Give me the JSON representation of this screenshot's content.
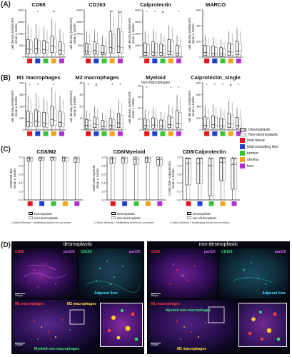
{
  "panelA": {
    "letter": "(A)",
    "charts": [
      {
        "title": "CD68",
        "ylabel": "cell density (cells/mm²)\nmean ± 1stdev",
        "yticks": [
          "0",
          "500",
          "1000",
          "1500",
          "2000"
        ],
        "ymax": 2000,
        "series": [
          {
            "name": "total tissue",
            "median": 350,
            "q1": 150,
            "q3": 750
          },
          {
            "name": "total excluding liver",
            "median": 380,
            "q1": 170,
            "q3": 780
          },
          {
            "name": "tumour",
            "median": 330,
            "q1": 160,
            "q3": 700
          },
          {
            "name": "stroma",
            "median": 480,
            "q1": 200,
            "q3": 900
          },
          {
            "name": "liver",
            "median": 300,
            "q1": 120,
            "q3": 650
          }
        ],
        "sig": [
          {
            "group": 1,
            "label": "*"
          },
          {
            "group": 3,
            "label": "**"
          }
        ]
      },
      {
        "title": "CD163",
        "ylabel": "cell density (cells/mm²)\nmean ± 1stdev",
        "yticks": [
          "0",
          "500",
          "1000",
          "1500",
          "2000"
        ],
        "ymax": 2000,
        "series": [
          {
            "name": "total tissue",
            "median": 250,
            "q1": 120,
            "q3": 600
          },
          {
            "name": "total excluding liver",
            "median": 280,
            "q1": 130,
            "q3": 650
          },
          {
            "name": "tumour",
            "median": 200,
            "q1": 100,
            "q3": 500
          },
          {
            "name": "stroma",
            "median": 420,
            "q1": 180,
            "q3": 1100
          },
          {
            "name": "liver",
            "median": 450,
            "q1": 200,
            "q3": 1200
          }
        ],
        "sig": [
          {
            "group": 3,
            "label": "**"
          },
          {
            "group": 4,
            "label": "#"
          }
        ]
      },
      {
        "title": "Calprotectin",
        "ylabel": "cell density (cells/mm²)\nmean ± 1stdev",
        "yticks": [
          "0",
          "1000",
          "2000",
          "3000",
          "4000"
        ],
        "ymax": 4000,
        "series": [
          {
            "name": "total tissue",
            "median": 400,
            "q1": 150,
            "q3": 1200
          },
          {
            "name": "total excluding liver",
            "median": 420,
            "q1": 160,
            "q3": 1300
          },
          {
            "name": "tumour",
            "median": 380,
            "q1": 140,
            "q3": 1100
          },
          {
            "name": "stroma",
            "median": 500,
            "q1": 200,
            "q3": 1500
          },
          {
            "name": "liver",
            "median": 350,
            "q1": 120,
            "q3": 1000
          }
        ],
        "sig": [
          {
            "group": 0,
            "label": "*"
          },
          {
            "group": 1,
            "label": "*"
          },
          {
            "group": 2,
            "label": "#"
          },
          {
            "group": 4,
            "label": "*"
          }
        ]
      },
      {
        "title": "MARCO",
        "ylabel": "cell density (cells/mm²)\nmean ± 1stdev",
        "yticks": [
          "0",
          "200",
          "400",
          "600"
        ],
        "ymax": 600,
        "series": [
          {
            "name": "total tissue",
            "median": 60,
            "q1": 20,
            "q3": 150
          },
          {
            "name": "total excluding liver",
            "median": 50,
            "q1": 15,
            "q3": 140
          },
          {
            "name": "tumour",
            "median": 40,
            "q1": 10,
            "q3": 120
          },
          {
            "name": "stroma",
            "median": 70,
            "q1": 25,
            "q3": 180
          },
          {
            "name": "liver",
            "median": 80,
            "q1": 30,
            "q3": 200
          }
        ],
        "sig": []
      }
    ]
  },
  "panelB": {
    "letter": "(B)",
    "charts": [
      {
        "title": "M1 macrophages",
        "subtitle": "",
        "ylabel": "cell density (cells/mm²)\nmean ± 1stdev",
        "yticks": [
          "0",
          "100",
          "200",
          "300",
          "400"
        ],
        "ymax": 400,
        "series": [
          {
            "name": "total tissue",
            "median": 70,
            "q1": 30,
            "q3": 160
          },
          {
            "name": "total excluding liver",
            "median": 75,
            "q1": 30,
            "q3": 170
          },
          {
            "name": "tumour",
            "median": 60,
            "q1": 25,
            "q3": 150
          },
          {
            "name": "stroma",
            "median": 90,
            "q1": 40,
            "q3": 200
          },
          {
            "name": "liver",
            "median": 65,
            "q1": 30,
            "q3": 160
          }
        ],
        "sig": [
          {
            "group": 0,
            "label": "*"
          },
          {
            "group": 1,
            "label": "*"
          },
          {
            "group": 3,
            "label": "*"
          }
        ]
      },
      {
        "title": "M2 macrophages",
        "subtitle": "",
        "ylabel": "cell density (cells/mm²)\nmean ± 1stdev",
        "yticks": [
          "0",
          "10",
          "20",
          "30",
          "40"
        ],
        "ymax": 40,
        "series": [
          {
            "name": "total tissue",
            "median": 4,
            "q1": 1,
            "q3": 9
          },
          {
            "name": "total excluding liver",
            "median": 5,
            "q1": 2,
            "q3": 11
          },
          {
            "name": "tumour",
            "median": 3,
            "q1": 1,
            "q3": 8
          },
          {
            "name": "stroma",
            "median": 4,
            "q1": 1,
            "q3": 10
          },
          {
            "name": "liver",
            "median": 6,
            "q1": 2,
            "q3": 14
          }
        ],
        "sig": [
          {
            "group": 0,
            "label": "*"
          },
          {
            "group": 1,
            "label": "#"
          },
          {
            "group": 3,
            "label": "*"
          },
          {
            "group": 4,
            "label": "*"
          }
        ]
      },
      {
        "title": "Myeloid",
        "subtitle": "non-macrophages",
        "ylabel": "cell density (cells/mm²)\nmean ± 1stdev",
        "yticks": [
          "0",
          "20",
          "40",
          "60",
          "80"
        ],
        "ymax": 80,
        "series": [
          {
            "name": "total tissue",
            "median": 8,
            "q1": 3,
            "q3": 20
          },
          {
            "name": "total excluding liver",
            "median": 9,
            "q1": 3,
            "q3": 22
          },
          {
            "name": "tumour",
            "median": 7,
            "q1": 2,
            "q3": 18
          },
          {
            "name": "stroma",
            "median": 10,
            "q1": 4,
            "q3": 25
          },
          {
            "name": "liver",
            "median": 12,
            "q1": 4,
            "q3": 35
          }
        ],
        "sig": [
          {
            "group": 0,
            "label": "*"
          },
          {
            "group": 3,
            "label": "*"
          },
          {
            "group": 4,
            "label": "*"
          }
        ]
      },
      {
        "title": "Calprotectin_single",
        "subtitle": "",
        "ylabel": "cell density (cells/mm²)\nmean ± 1stdev",
        "yticks": [
          "0",
          "200",
          "400",
          "600",
          "800"
        ],
        "ymax": 800,
        "series": [
          {
            "name": "total tissue",
            "median": 80,
            "q1": 30,
            "q3": 220
          },
          {
            "name": "total excluding liver",
            "median": 90,
            "q1": 35,
            "q3": 240
          },
          {
            "name": "tumour",
            "median": 70,
            "q1": 25,
            "q3": 200
          },
          {
            "name": "stroma",
            "median": 110,
            "q1": 40,
            "q3": 280
          },
          {
            "name": "liver",
            "median": 75,
            "q1": 30,
            "q3": 210
          }
        ],
        "sig": [
          {
            "group": 0,
            "label": "*"
          },
          {
            "group": 1,
            "label": "*"
          },
          {
            "group": 2,
            "label": "*"
          },
          {
            "group": 3,
            "label": "#"
          },
          {
            "group": 4,
            "label": "*"
          }
        ]
      }
    ]
  },
  "legendRight": {
    "items": [
      {
        "label": "Desmoplastic",
        "color": "#ffffff",
        "border": "#000000"
      },
      {
        "label": "Non-desmoplastic",
        "color": "#ffffff",
        "border": "#999999"
      },
      {
        "label": "total tissue",
        "color": "#e8141c",
        "border": "#e8141c"
      },
      {
        "label": "total excluding liver",
        "color": "#1f3ec9",
        "border": "#1f3ec9"
      },
      {
        "label": "tumour",
        "color": "#37c437",
        "border": "#37c437"
      },
      {
        "label": "stroma",
        "color": "#f4a31b",
        "border": "#f4a31b"
      },
      {
        "label": "liver",
        "color": "#b030cf",
        "border": "#b030cf"
      }
    ]
  },
  "panelC": {
    "letter": "(C)",
    "charts": [
      {
        "title": "CD8/M2",
        "ylabel": "CD8/CD8+M2\nmean ± 1stdev",
        "yticks": [
          "0.0",
          "0.2",
          "0.4",
          "0.6",
          "0.8",
          "1.0"
        ],
        "series": [
          {
            "median": 0.98,
            "q1": 0.9,
            "q3": 1.0
          },
          {
            "median": 0.98,
            "q1": 0.92,
            "q3": 1.0
          },
          {
            "median": 0.99,
            "q1": 0.93,
            "q3": 1.0
          },
          {
            "median": 0.98,
            "q1": 0.9,
            "q3": 1.0
          },
          {
            "median": 0.97,
            "q1": 0.88,
            "q3": 1.0
          }
        ],
        "sig": [
          {
            "group": 0,
            "label": "*"
          }
        ],
        "legend": [
          "Desmoplastic",
          "Non-desmoplastic"
        ],
        "note": "U Mann-Whitney + Multitesting Bonferroni correction"
      },
      {
        "title": "CD8/Myeloid",
        "ylabel": "CD8/CD8+Myeloid\nmean ± 1stdev",
        "yticks": [
          "0.0",
          "0.2",
          "0.4",
          "0.6",
          "0.8",
          "1.0"
        ],
        "series": [
          {
            "median": 0.96,
            "q1": 0.85,
            "q3": 1.0
          },
          {
            "median": 0.97,
            "q1": 0.86,
            "q3": 1.0
          },
          {
            "median": 0.95,
            "q1": 0.83,
            "q3": 1.0
          },
          {
            "median": 0.97,
            "q1": 0.88,
            "q3": 1.0
          },
          {
            "median": 0.94,
            "q1": 0.8,
            "q3": 1.0
          }
        ],
        "sig": [],
        "legend": [
          "Desmoplastic",
          "Non-desmoplastic"
        ],
        "note": "U Mann-Whitney + Multitesting Bonferroni correction"
      },
      {
        "title": "CD8/Calprotectin",
        "ylabel": "CD8/(CD8+Calprotectin)\nmean ± 1stdev",
        "yticks": [
          "0.0",
          "0.2",
          "0.4",
          "0.6",
          "0.8",
          "1.0"
        ],
        "series": [
          {
            "median": 0.85,
            "q1": 0.35,
            "q3": 0.98
          },
          {
            "median": 0.86,
            "q1": 0.38,
            "q3": 0.98
          },
          {
            "median": 0.8,
            "q1": 0.1,
            "q3": 0.97
          },
          {
            "median": 0.88,
            "q1": 0.45,
            "q3": 0.99
          },
          {
            "median": 0.83,
            "q1": 0.25,
            "q3": 0.98
          }
        ],
        "sig": [
          {
            "group": 0,
            "label": "****"
          },
          {
            "group": 1,
            "label": "****"
          },
          {
            "group": 2,
            "label": "**"
          },
          {
            "group": 3,
            "label": "****"
          },
          {
            "group": 4,
            "label": "***"
          }
        ],
        "legend": [
          "Desmoplastic",
          "Non-desmoplastic"
        ],
        "note": "U Mann-Whitney + Multitesting Bonferroni correction"
      }
    ]
  },
  "panelD": {
    "letter": "(D)",
    "left": {
      "title": "desmoplastic",
      "top": {
        "cd68": "CD68",
        "cd163": "CD163",
        "panck1": "panCK",
        "panck2": "panCK",
        "adj": "Adjacent liver",
        "scale": "200µm"
      },
      "bottom": {
        "m1": "M1 macrophages",
        "m2": "M2 macrophages",
        "myeloid": "Myeloid non-macrophages",
        "scale": "200µm"
      }
    },
    "right": {
      "title": "non-desmoplastic",
      "top": {
        "cd68": "CD68",
        "cd163": "CD163",
        "panck1": "panCK",
        "panck2": "panCK",
        "adj": "Adjacent liver",
        "scale": "200µm"
      },
      "bottom": {
        "m1": "M1 macrophages",
        "myeloid": "Myeloid non-macrophages",
        "m2": "M2 macrophages",
        "scale": "200µm"
      }
    }
  },
  "colors": {
    "red": "#e8141c",
    "blue": "#1f3ec9",
    "green": "#37c437",
    "orange": "#f4a31b",
    "purple": "#b030cf"
  }
}
